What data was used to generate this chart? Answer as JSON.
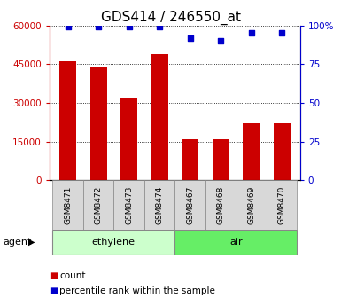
{
  "title": "GDS414 / 246550_at",
  "samples": [
    "GSM8471",
    "GSM8472",
    "GSM8473",
    "GSM8474",
    "GSM8467",
    "GSM8468",
    "GSM8469",
    "GSM8470"
  ],
  "counts": [
    46000,
    44000,
    32000,
    49000,
    16000,
    16000,
    22000,
    22000
  ],
  "percentiles": [
    99,
    99,
    99,
    99,
    92,
    90,
    95,
    95
  ],
  "bar_color": "#cc0000",
  "dot_color": "#0000cc",
  "ylim_left": [
    0,
    60000
  ],
  "ylim_right": [
    0,
    100
  ],
  "yticks_left": [
    0,
    15000,
    30000,
    45000,
    60000
  ],
  "yticks_right": [
    0,
    25,
    50,
    75,
    100
  ],
  "yticklabels_left": [
    "0",
    "15000",
    "30000",
    "45000",
    "60000"
  ],
  "yticklabels_right": [
    "0",
    "25",
    "50",
    "75",
    "100%"
  ],
  "groups": [
    {
      "label": "ethylene",
      "indices": [
        0,
        1,
        2,
        3
      ],
      "color": "#ccffcc"
    },
    {
      "label": "air",
      "indices": [
        4,
        5,
        6,
        7
      ],
      "color": "#66ee66"
    }
  ],
  "agent_label": "agent",
  "legend_count_label": "count",
  "legend_pct_label": "percentile rank within the sample",
  "background_color": "#ffffff",
  "title_fontsize": 11,
  "tick_fontsize": 7.5,
  "sample_fontsize": 6.5,
  "group_fontsize": 8,
  "legend_fontsize": 7.5
}
